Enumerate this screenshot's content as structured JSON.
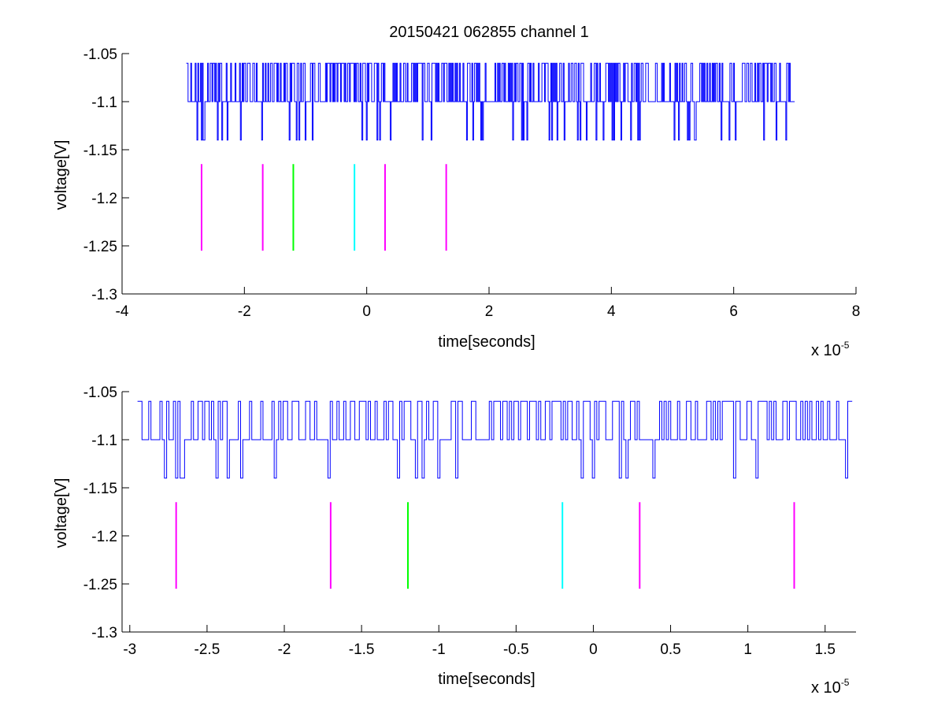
{
  "chart_data": [
    {
      "type": "line",
      "title": "20150421 062855 channel 1",
      "xlabel": "time[seconds]",
      "ylabel": "voltage[V]",
      "x_multiplier": {
        "base": "x 10",
        "exponent": "-5"
      },
      "xlim": [
        -4,
        8
      ],
      "ylim": [
        -1.3,
        -1.05
      ],
      "xticks": [
        -4,
        -2,
        0,
        2,
        4,
        6,
        8
      ],
      "yticks": [
        -1.05,
        -1.1,
        -1.15,
        -1.2,
        -1.25,
        -1.3
      ],
      "signal": {
        "color": "#0000ff",
        "x_range": [
          -2.95,
          7.0
        ],
        "levels": [
          -1.06,
          -1.1,
          -1.14
        ],
        "sample_step": 0.0145
      },
      "markers": {
        "y_range": [
          -1.255,
          -1.165
        ],
        "items": [
          {
            "x": -2.7,
            "color": "#ff00ff"
          },
          {
            "x": -1.7,
            "color": "#ff00ff"
          },
          {
            "x": -1.2,
            "color": "#00ff00"
          },
          {
            "x": -0.2,
            "color": "#00ffff"
          },
          {
            "x": 0.3,
            "color": "#ff00ff"
          },
          {
            "x": 1.3,
            "color": "#ff00ff"
          }
        ]
      }
    },
    {
      "type": "line",
      "title": "",
      "xlabel": "time[seconds]",
      "ylabel": "voltage[V]",
      "x_multiplier": {
        "base": "x 10",
        "exponent": "-5"
      },
      "xlim": [
        -3.05,
        1.7
      ],
      "ylim": [
        -1.3,
        -1.05
      ],
      "xticks": [
        -3,
        -2.5,
        -2,
        -1.5,
        -1,
        -0.5,
        0,
        0.5,
        1,
        1.5
      ],
      "yticks": [
        -1.05,
        -1.1,
        -1.15,
        -1.2,
        -1.25,
        -1.3
      ],
      "signal": {
        "color": "#0000ff",
        "x_range": [
          -2.95,
          1.68
        ],
        "levels": [
          -1.06,
          -1.1,
          -1.14
        ],
        "sample_step": 0.0145
      },
      "markers": {
        "y_range": [
          -1.255,
          -1.165
        ],
        "items": [
          {
            "x": -2.7,
            "color": "#ff00ff"
          },
          {
            "x": -1.7,
            "color": "#ff00ff"
          },
          {
            "x": -1.2,
            "color": "#00ff00"
          },
          {
            "x": -0.2,
            "color": "#00ffff"
          },
          {
            "x": 0.3,
            "color": "#ff00ff"
          },
          {
            "x": 1.3,
            "color": "#ff00ff"
          }
        ]
      }
    }
  ]
}
